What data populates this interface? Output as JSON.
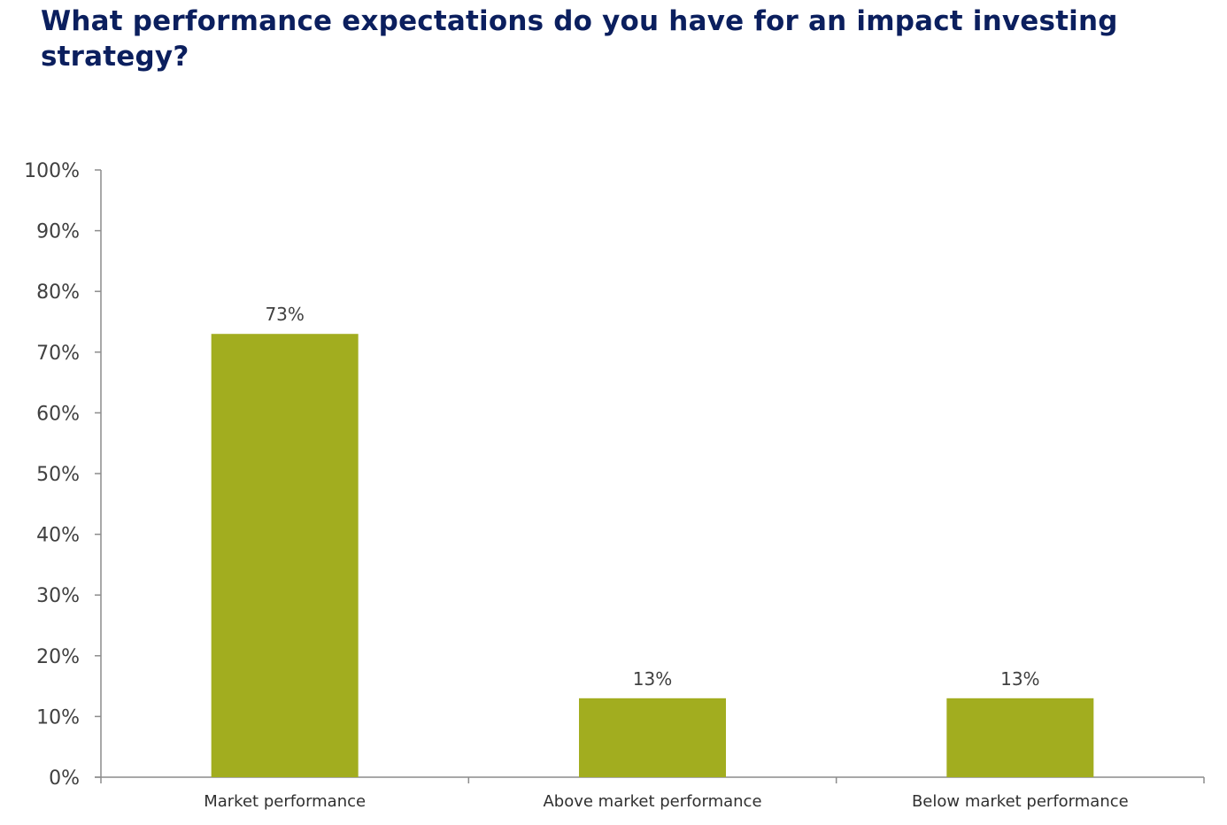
{
  "chart_data": {
    "type": "bar",
    "title": "What performance expectations do you have for an impact investing strategy?",
    "categories": [
      "Market performance",
      "Above market performance",
      "Below market performance"
    ],
    "values": [
      73,
      13,
      13
    ],
    "data_labels": [
      "73%",
      "13%",
      "13%"
    ],
    "xlabel": "",
    "ylabel": "",
    "ylim": [
      0,
      100
    ],
    "yticks": [
      0,
      10,
      20,
      30,
      40,
      50,
      60,
      70,
      80,
      90,
      100
    ],
    "ytick_labels": [
      "0%",
      "10%",
      "20%",
      "30%",
      "40%",
      "50%",
      "60%",
      "70%",
      "80%",
      "90%",
      "100%"
    ],
    "grid": false,
    "legend": "none",
    "bar_color": "#a2ad1f",
    "title_color": "#0b1f5e"
  }
}
